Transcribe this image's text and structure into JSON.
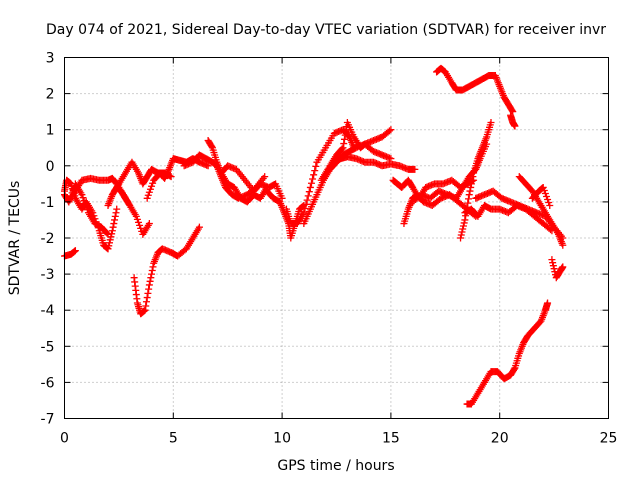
{
  "chart_data": {
    "type": "scatter",
    "title": "Day 074 of 2021, Sidereal Day-to-day VTEC variation (SDTVAR) for receiver invr",
    "xlabel": "GPS time / hours",
    "ylabel": "SDTVAR / TECUs",
    "xlim": [
      0,
      25
    ],
    "ylim": [
      -7,
      3
    ],
    "xticks": [
      "0",
      "5",
      "10",
      "15",
      "20",
      "25"
    ],
    "yticks": [
      "3",
      "2",
      "1",
      "0",
      "-1",
      "-2",
      "-3",
      "-4",
      "-5",
      "-6",
      "-7"
    ],
    "grid": true,
    "marker": "+",
    "series_color": "#ff0000",
    "series": [
      {
        "name": "trace-1",
        "x": [
          0,
          0.1,
          0.3,
          0.5,
          0.8,
          1.0,
          1.3,
          1.6,
          1.8,
          2.0,
          2.2,
          2.4
        ],
        "y": [
          -0.7,
          -0.4,
          -0.5,
          -0.9,
          -1.2,
          -1.0,
          -1.3,
          -1.8,
          -2.2,
          -2.3,
          -1.8,
          -1.2
        ]
      },
      {
        "name": "trace-2",
        "x": [
          0,
          0.2,
          0.5,
          0.8,
          1.2,
          1.6,
          2.0,
          2.2,
          2.4,
          2.7,
          2.9
        ],
        "y": [
          -0.8,
          -1.0,
          -0.7,
          -0.4,
          -0.35,
          -0.4,
          -0.4,
          -0.35,
          -0.5,
          -0.8,
          -1.0
        ]
      },
      {
        "name": "trace-3",
        "x": [
          0.2,
          0.5,
          0.8,
          1.1,
          1.4,
          1.7,
          2.0
        ],
        "y": [
          -1.0,
          -0.5,
          -0.8,
          -1.3,
          -1.6,
          -1.7,
          -1.9
        ]
      },
      {
        "name": "trace-4",
        "x": [
          0,
          0.3,
          0.5
        ],
        "y": [
          -2.5,
          -2.45,
          -2.35
        ]
      },
      {
        "name": "trace-5",
        "x": [
          2.0,
          2.2,
          2.4,
          2.6,
          2.8,
          3.0,
          3.3,
          3.6,
          3.9
        ],
        "y": [
          -1.1,
          -0.8,
          -0.6,
          -0.7,
          -0.9,
          -1.1,
          -1.4,
          -1.9,
          -1.6
        ]
      },
      {
        "name": "trace-6",
        "x": [
          2.3,
          2.5,
          2.8,
          3.1,
          3.4,
          3.6,
          3.8,
          4.0,
          4.3,
          4.6,
          4.9
        ],
        "y": [
          -0.7,
          -0.5,
          -0.2,
          0.1,
          -0.2,
          -0.5,
          -0.3,
          -0.1,
          -0.2,
          -0.2,
          -0.3
        ]
      },
      {
        "name": "trace-7",
        "x": [
          3.2,
          3.35,
          3.5,
          3.7,
          3.9,
          4.1,
          4.3,
          4.5,
          4.9,
          5.2,
          5.6,
          5.9,
          6.2
        ],
        "y": [
          -3.1,
          -3.8,
          -4.1,
          -4.0,
          -3.3,
          -2.7,
          -2.4,
          -2.3,
          -2.4,
          -2.5,
          -2.3,
          -2.0,
          -1.7
        ]
      },
      {
        "name": "trace-8",
        "x": [
          3.8,
          4.1,
          4.4,
          4.6,
          4.8,
          5.0,
          5.3,
          5.6,
          5.9,
          6.2,
          6.6
        ],
        "y": [
          -0.9,
          -0.4,
          -0.2,
          -0.35,
          -0.1,
          0.2,
          0.15,
          0.1,
          0.2,
          0.1,
          0.0
        ]
      },
      {
        "name": "trace-9",
        "x": [
          5.5,
          5.9,
          6.2,
          6.5,
          6.8,
          7.0,
          7.2,
          7.4,
          7.7,
          8.0,
          8.4,
          8.8,
          9.2
        ],
        "y": [
          0.0,
          0.1,
          0.3,
          0.2,
          0.1,
          0.0,
          -0.3,
          -0.6,
          -0.8,
          -0.9,
          -0.8,
          -0.6,
          -0.3
        ]
      },
      {
        "name": "trace-10",
        "x": [
          6.6,
          6.8,
          7.0,
          7.2,
          7.5,
          7.8,
          8.1,
          8.4,
          8.7,
          9.0,
          9.3
        ],
        "y": [
          0.7,
          0.5,
          0.1,
          -0.2,
          -0.5,
          -0.6,
          -0.9,
          -1.0,
          -0.8,
          -0.9,
          -0.6
        ]
      },
      {
        "name": "trace-11",
        "x": [
          7.2,
          7.5,
          7.9,
          8.3,
          8.7,
          9.0,
          9.4,
          9.7,
          10.0
        ],
        "y": [
          -0.2,
          0.0,
          -0.1,
          -0.4,
          -0.7,
          -0.5,
          -0.6,
          -0.5,
          -0.9
        ]
      },
      {
        "name": "trace-12",
        "x": [
          9.3,
          9.6,
          9.9,
          10.1,
          10.3,
          10.4,
          10.6,
          10.8,
          11.0
        ],
        "y": [
          -0.7,
          -0.9,
          -1.0,
          -1.3,
          -1.6,
          -2.0,
          -1.6,
          -1.2,
          -1.1
        ]
      },
      {
        "name": "trace-13",
        "x": [
          10.2,
          10.4,
          10.7,
          11.0,
          11.3,
          11.6,
          12.0,
          12.4,
          12.8,
          13.1,
          13.3
        ],
        "y": [
          -1.2,
          -1.6,
          -1.6,
          -1.3,
          -0.6,
          0.1,
          0.5,
          0.9,
          1.0,
          0.8,
          0.5
        ]
      },
      {
        "name": "trace-14",
        "x": [
          11.0,
          11.3,
          11.6,
          11.9,
          12.2,
          12.5,
          12.8,
          13.1,
          13.4,
          13.8,
          14.2,
          14.6,
          15.0
        ],
        "y": [
          -1.6,
          -1.2,
          -0.8,
          -0.4,
          -0.1,
          0.1,
          0.3,
          0.4,
          0.5,
          0.6,
          0.7,
          0.8,
          1.0
        ]
      },
      {
        "name": "trace-15",
        "x": [
          11.8,
          12.1,
          12.4,
          12.7,
          13.0,
          13.4,
          13.8,
          14.2,
          14.6,
          15.0,
          15.4,
          15.8,
          16.1
        ],
        "y": [
          -0.4,
          -0.1,
          0.1,
          0.2,
          0.25,
          0.2,
          0.1,
          0.1,
          0.0,
          0.05,
          0.0,
          -0.1,
          -0.1
        ]
      },
      {
        "name": "trace-16",
        "x": [
          12.2,
          12.5,
          12.8,
          13.0,
          13.3,
          13.6,
          13.8,
          14.2,
          14.6,
          15.0
        ],
        "y": [
          0.0,
          0.3,
          0.5,
          1.2,
          0.8,
          0.5,
          0.6,
          0.4,
          0.3,
          0.2
        ]
      },
      {
        "name": "trace-17",
        "x": [
          15.1,
          15.3,
          15.5,
          15.8,
          16.0,
          16.3,
          16.6,
          17.0,
          17.4,
          17.8,
          18.2,
          18.5,
          18.8
        ],
        "y": [
          -0.4,
          -0.5,
          -0.6,
          -0.4,
          -0.6,
          -0.9,
          -0.6,
          -0.5,
          -0.5,
          -0.4,
          -0.6,
          -0.5,
          -0.4
        ]
      },
      {
        "name": "trace-18",
        "x": [
          15.6,
          15.8,
          16.0,
          16.2,
          16.5,
          16.9,
          17.3,
          17.7,
          18.1,
          18.5,
          18.9
        ],
        "y": [
          -1.6,
          -1.2,
          -0.9,
          -0.8,
          -1.0,
          -1.1,
          -0.9,
          -0.8,
          -1.0,
          -1.2,
          -1.4
        ]
      },
      {
        "name": "trace-19",
        "x": [
          16.0,
          16.4,
          16.8,
          17.2,
          17.6,
          18.0,
          18.3,
          18.6,
          18.9,
          19.1,
          19.4
        ],
        "y": [
          -1.0,
          -0.8,
          -0.9,
          -0.7,
          -0.8,
          -0.9,
          -0.6,
          -0.3,
          -0.1,
          0.2,
          0.6
        ]
      },
      {
        "name": "trace-20",
        "x": [
          18.2,
          18.4,
          18.6,
          18.8,
          19.0,
          19.2,
          19.4,
          19.6
        ],
        "y": [
          -2.0,
          -1.5,
          -0.8,
          -0.2,
          0.2,
          0.5,
          0.8,
          1.2
        ]
      },
      {
        "name": "trace-21",
        "x": [
          18.4,
          18.7,
          19.0,
          19.3,
          19.6,
          20.0,
          20.4,
          20.8,
          21.2,
          21.6,
          22.0,
          22.4
        ],
        "y": [
          -1.3,
          -1.2,
          -1.4,
          -1.1,
          -1.2,
          -1.2,
          -1.3,
          -1.1,
          -1.2,
          -1.4,
          -1.6,
          -1.8
        ]
      },
      {
        "name": "trace-22",
        "x": [
          18.9,
          19.3,
          19.7,
          20.1,
          20.5,
          20.9,
          21.3,
          21.7,
          22.1,
          22.5,
          22.9
        ],
        "y": [
          -0.9,
          -0.8,
          -0.7,
          -0.9,
          -1.0,
          -1.1,
          -1.2,
          -1.3,
          -1.4,
          -1.7,
          -2.0
        ]
      },
      {
        "name": "trace-23",
        "x": [
          20.9,
          21.2,
          21.5,
          21.8,
          22.1,
          22.4,
          22.7,
          22.9
        ],
        "y": [
          -0.3,
          -0.5,
          -0.7,
          -1.0,
          -1.3,
          -1.6,
          -1.9,
          -2.2
        ]
      },
      {
        "name": "trace-24",
        "x": [
          21.5,
          21.8,
          22.0,
          22.3
        ],
        "y": [
          -0.9,
          -0.7,
          -0.6,
          -1.1
        ]
      },
      {
        "name": "trace-25",
        "x": [
          22.4,
          22.6,
          22.8,
          22.9
        ],
        "y": [
          -2.6,
          -3.1,
          -2.9,
          -2.8
        ]
      },
      {
        "name": "trace-26",
        "x": [
          17.1,
          17.3,
          17.5,
          17.8,
          18.0,
          18.3,
          18.6,
          18.9,
          19.2,
          19.5,
          19.8,
          20.0,
          20.2,
          20.4,
          20.6
        ],
        "y": [
          2.6,
          2.7,
          2.6,
          2.3,
          2.1,
          2.1,
          2.2,
          2.3,
          2.4,
          2.5,
          2.5,
          2.2,
          1.9,
          1.7,
          1.5
        ]
      },
      {
        "name": "trace-27",
        "x": [
          20.5,
          20.6,
          20.7
        ],
        "y": [
          1.4,
          1.2,
          1.1
        ]
      },
      {
        "name": "trace-28",
        "x": [
          18.5,
          18.7,
          19.0,
          19.3,
          19.6,
          19.9,
          20.2,
          20.5,
          20.7,
          20.9,
          21.1,
          21.3,
          21.6,
          21.9,
          22.1,
          22.2
        ],
        "y": [
          -6.6,
          -6.6,
          -6.3,
          -6.0,
          -5.7,
          -5.7,
          -5.9,
          -5.8,
          -5.6,
          -5.2,
          -4.9,
          -4.7,
          -4.5,
          -4.3,
          -4.0,
          -3.8
        ]
      }
    ]
  }
}
